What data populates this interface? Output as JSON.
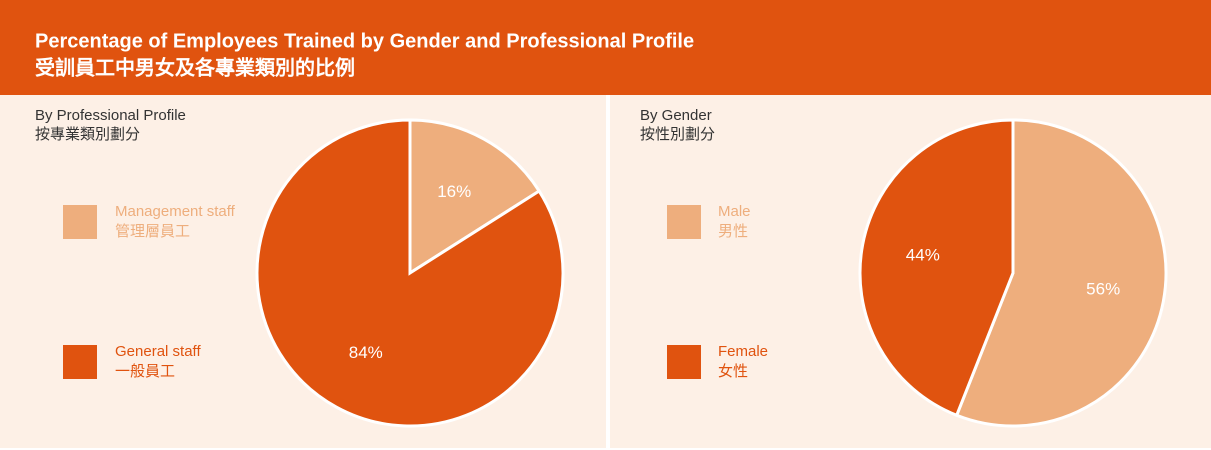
{
  "header": {
    "title": [
      "Percentage of Employees Trained by Gender and Professional Profile",
      "受訓員工中男女及各專業類別的比例"
    ]
  },
  "chart_data": [
    {
      "type": "pie",
      "title": [
        "By Professional Profile",
        "按專業類別劃分"
      ],
      "categories": [
        "Management staff",
        "General staff"
      ],
      "categories_zh": [
        "管理層員工",
        "一般員工"
      ],
      "values": [
        16,
        84
      ],
      "value_labels": [
        "16%",
        "84%"
      ],
      "colors": [
        "#eeae7d",
        "#e0530f"
      ]
    },
    {
      "type": "pie",
      "title": [
        "By Gender",
        "按性別劃分"
      ],
      "categories": [
        "Male",
        "Female"
      ],
      "categories_zh": [
        "男性",
        "女性"
      ],
      "values": [
        56,
        44
      ],
      "value_labels": [
        "56%",
        "44%"
      ],
      "colors": [
        "#eeae7d",
        "#e0530f"
      ]
    }
  ]
}
